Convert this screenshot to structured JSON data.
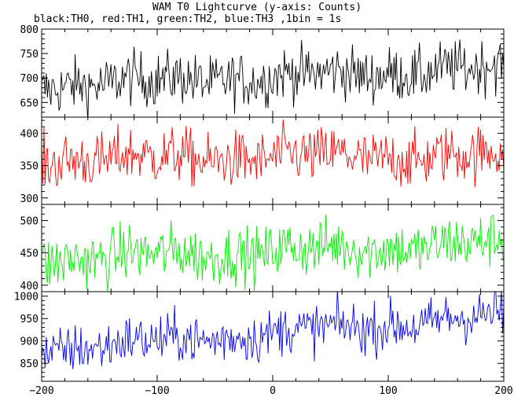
{
  "chart_data": {
    "type": "line",
    "title": "WAM T0 Lightcurve (y-axis: Counts)",
    "subtitle": "black:TH0, red:TH1, green:TH2, blue:TH3 ,1bin = 1s",
    "xlabel": "",
    "ylabel": "",
    "x_range": [
      -200,
      200
    ],
    "x_ticks": [
      -200,
      -100,
      0,
      100,
      200
    ],
    "grid": false,
    "legend": "none",
    "panels": [
      {
        "series": "TH0",
        "color": "#000000",
        "y_range": [
          620,
          800
        ],
        "y_ticks": [
          650,
          700,
          750,
          800
        ],
        "trend_start": 685,
        "trend_end": 720,
        "noise": 28
      },
      {
        "series": "TH1",
        "color": "#ff0000",
        "y_range": [
          290,
          425
        ],
        "y_ticks": [
          300,
          350,
          400
        ],
        "trend_start": 360,
        "trend_end": 365,
        "noise": 22
      },
      {
        "series": "TH2",
        "color": "#00ee00",
        "y_range": [
          390,
          525
        ],
        "y_ticks": [
          400,
          450,
          500
        ],
        "trend_start": 440,
        "trend_end": 465,
        "noise": 22
      },
      {
        "series": "TH3",
        "color": "#0000ee",
        "y_range": [
          810,
          1010
        ],
        "y_ticks": [
          850,
          900,
          950,
          1000
        ],
        "trend_start": 880,
        "trend_end": 955,
        "noise": 28
      }
    ]
  }
}
